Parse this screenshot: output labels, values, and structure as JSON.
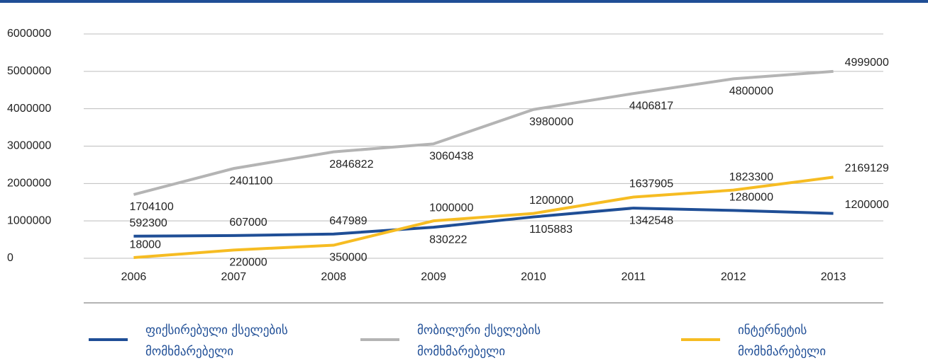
{
  "chart_data": {
    "type": "line",
    "categories": [
      "2006",
      "2007",
      "2008",
      "2009",
      "2010",
      "2011",
      "2012",
      "2013"
    ],
    "series": [
      {
        "name": "ფიქსირებული ქსელების მომხმარებელი",
        "color": "#1f4e96",
        "values": [
          592300,
          607000,
          647989,
          830222,
          1105883,
          1342548,
          1280000,
          1200000
        ]
      },
      {
        "name": "მობილური ქსელების მომხმარებელი",
        "color": "#b4b4b4",
        "values": [
          1704100,
          2401100,
          2846822,
          3060438,
          3980000,
          4406817,
          4800000,
          4999000
        ]
      },
      {
        "name": "ინტერნეტის მომხმარებელი",
        "color": "#f6bc22",
        "values": [
          18000,
          220000,
          350000,
          1000000,
          1200000,
          1637905,
          1823300,
          2169129
        ]
      }
    ],
    "ylim": [
      0,
      6000000
    ],
    "yticks": [
      0,
      1000000,
      2000000,
      3000000,
      4000000,
      5000000,
      6000000
    ],
    "grid": true,
    "legend": "bottom"
  }
}
